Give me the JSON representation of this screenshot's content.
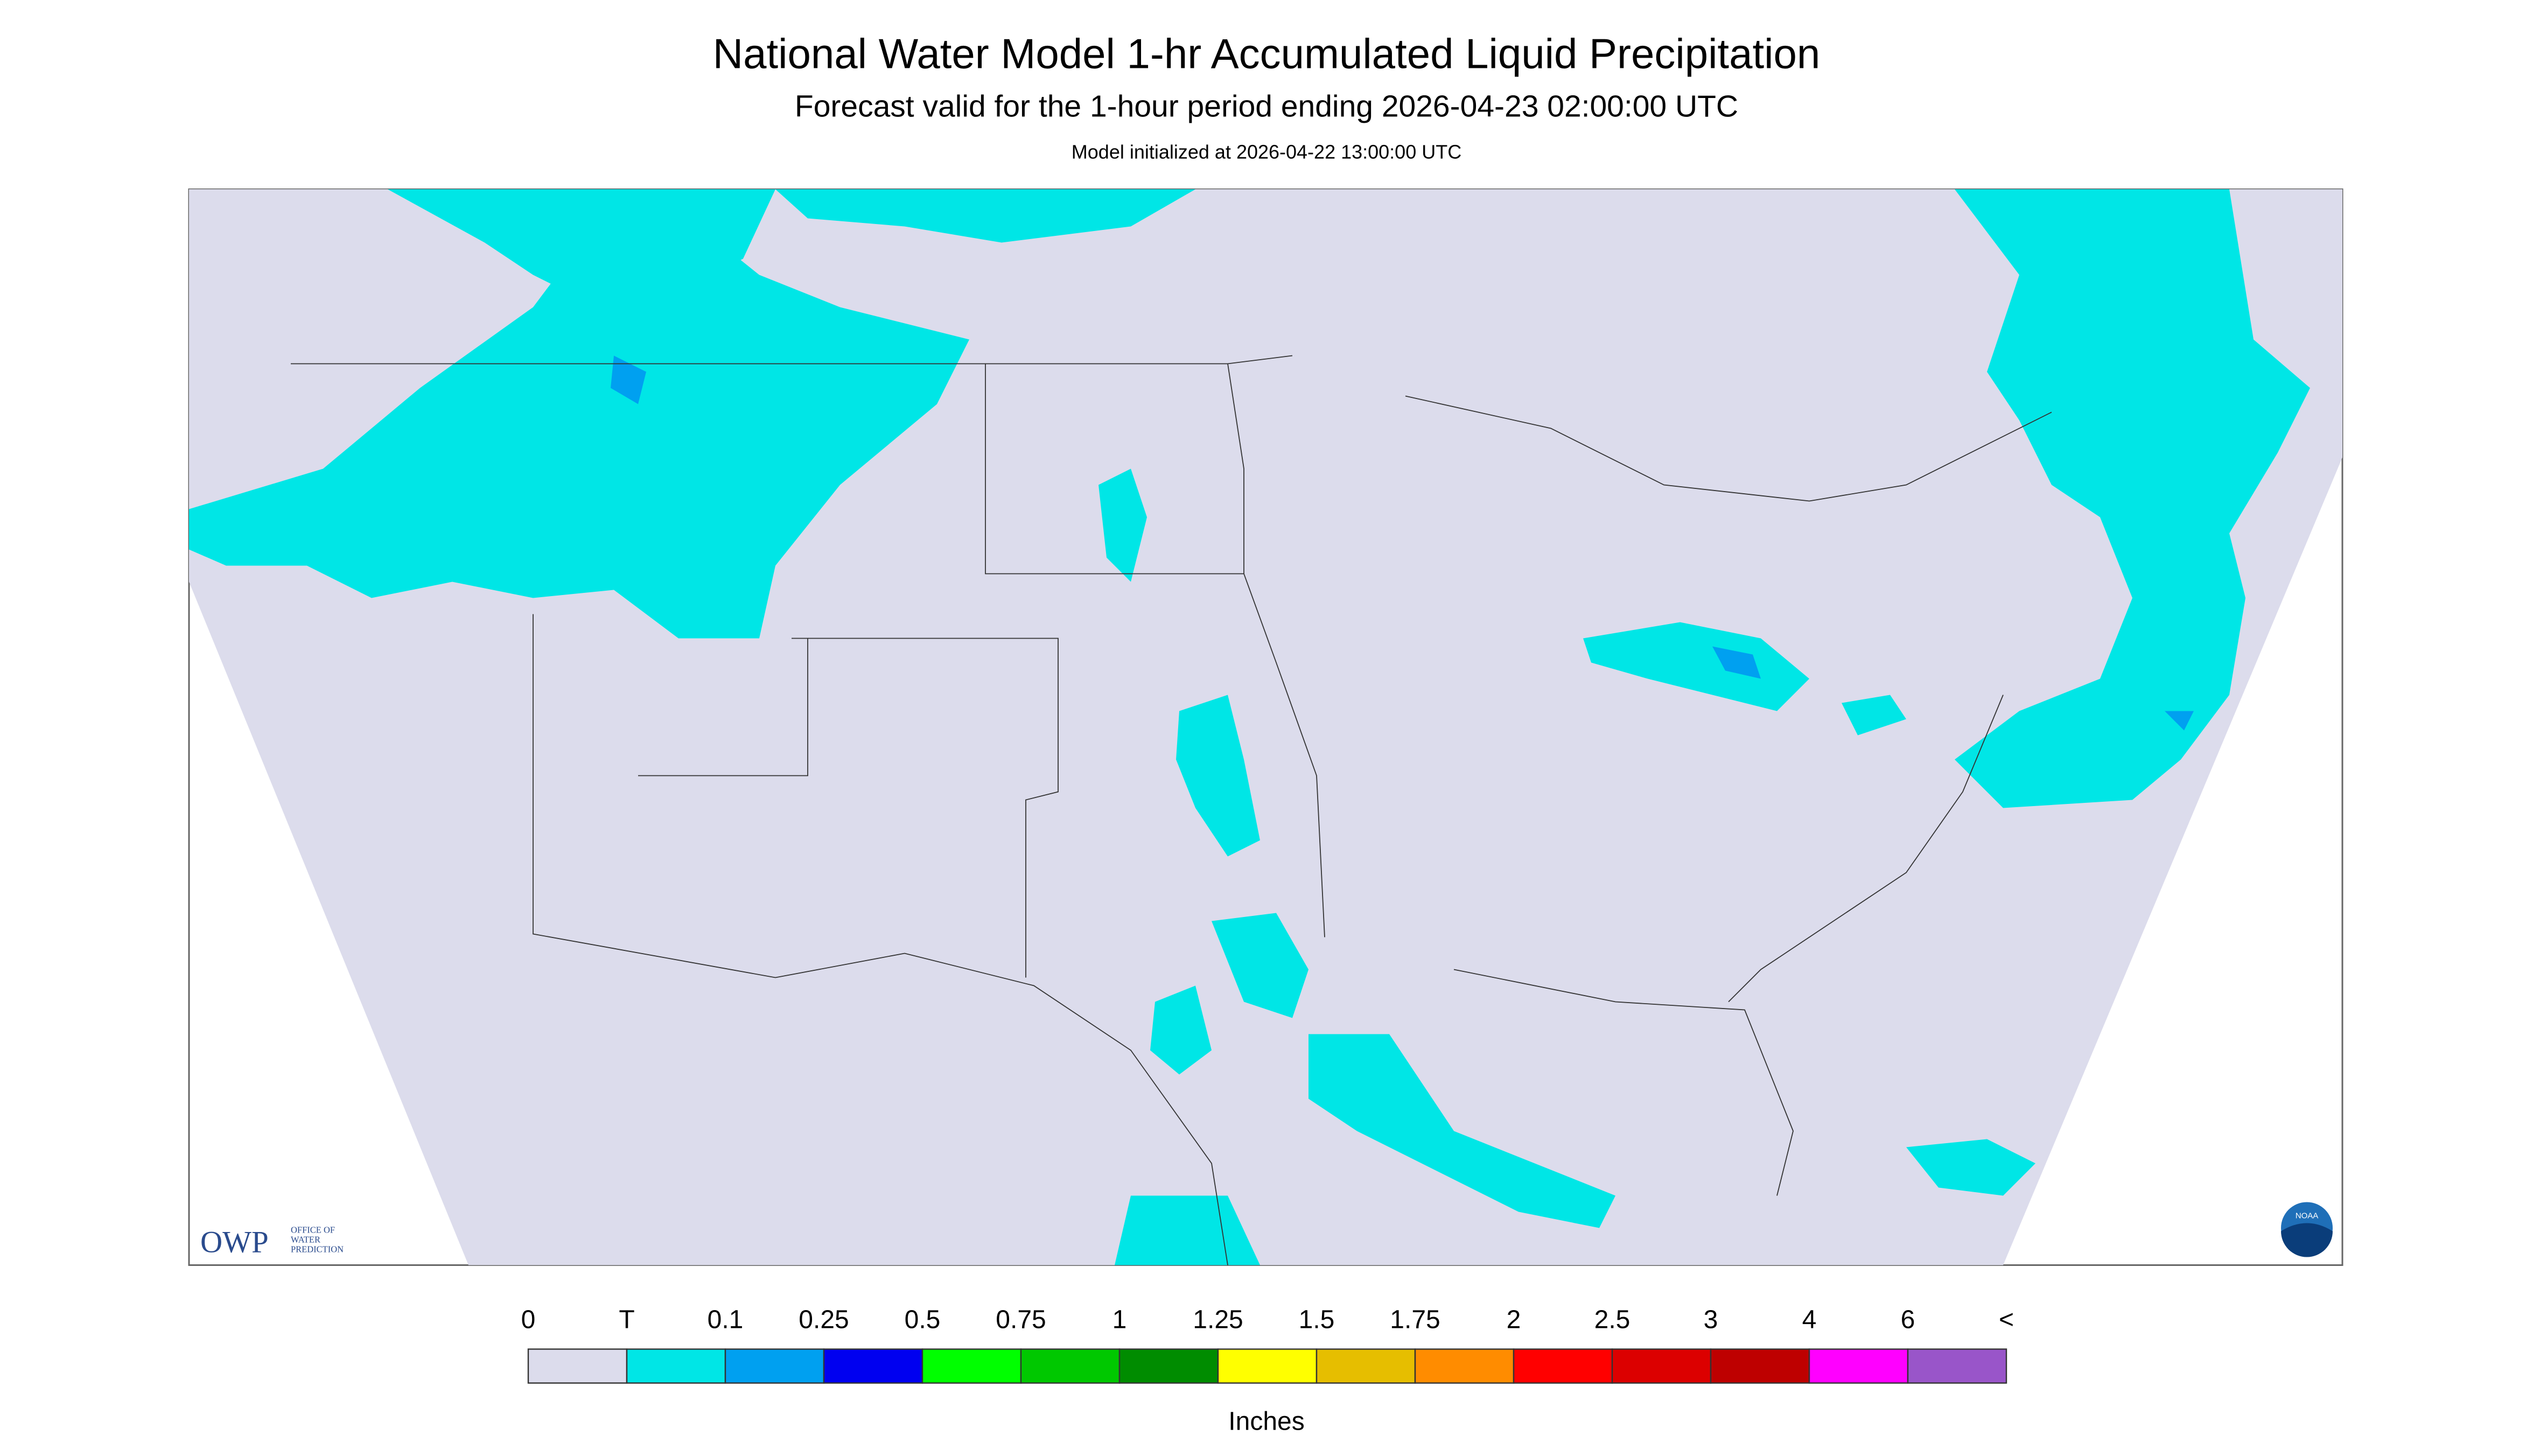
{
  "header": {
    "title": "National Water Model 1-hr Accumulated Liquid Precipitation",
    "subtitle": "Forecast valid for the 1-hour period ending 2026-04-23 02:00:00 UTC",
    "initialized": "Model initialized at 2026-04-22 13:00:00 UTC"
  },
  "logos": {
    "owp": "OWP",
    "owp_text": [
      "OFFICE OF",
      "WATER",
      "PREDICTION"
    ],
    "noaa": "NOAA"
  },
  "legend": {
    "labels": [
      "0",
      "T",
      "0.1",
      "0.25",
      "0.5",
      "0.75",
      "1",
      "1.25",
      "1.5",
      "1.75",
      "2",
      "2.5",
      "3",
      "4",
      "6",
      "<"
    ],
    "colors": [
      "#dcdcec",
      "#00e6e6",
      "#00a0f0",
      "#0000f0",
      "#00ff00",
      "#00c800",
      "#008c00",
      "#ffff00",
      "#e6be00",
      "#ff8c00",
      "#ff0000",
      "#dc0000",
      "#be0000",
      "#ff00ff",
      "#9955c9"
    ],
    "unit": "Inches"
  }
}
